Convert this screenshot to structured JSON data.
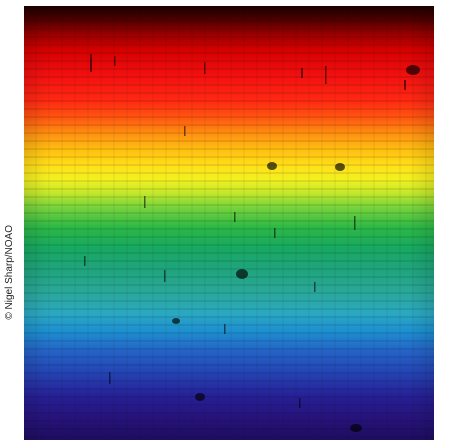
{
  "image": {
    "credit": "© Nigel Sharp/NOAO"
  }
}
